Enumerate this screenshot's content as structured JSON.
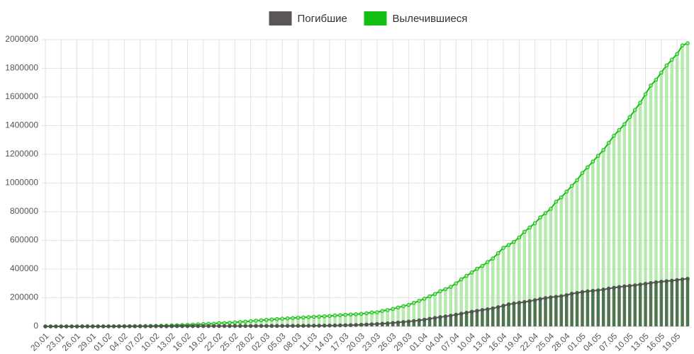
{
  "chart_data": {
    "type": "bar-line",
    "categories": [
      "20.01",
      null,
      null,
      "23.01",
      null,
      null,
      "26.01",
      null,
      null,
      "29.01",
      null,
      null,
      "01.02",
      null,
      null,
      "04.02",
      null,
      null,
      "07.02",
      null,
      null,
      "10.02",
      null,
      null,
      "13.02",
      null,
      null,
      "16.02",
      null,
      null,
      "19.02",
      null,
      null,
      "22.02",
      null,
      null,
      "25.02",
      null,
      null,
      "28.02",
      null,
      null,
      "02.03",
      null,
      null,
      "05.03",
      null,
      null,
      "08.03",
      null,
      null,
      "11.03",
      null,
      null,
      "14.03",
      null,
      null,
      "17.03",
      null,
      null,
      "20.03",
      null,
      null,
      "23.03",
      null,
      null,
      "26.03",
      null,
      null,
      "29.03",
      null,
      null,
      "01.04",
      null,
      null,
      "04.04",
      null,
      null,
      "07.04",
      null,
      null,
      "10.04",
      null,
      null,
      "13.04",
      null,
      null,
      "16.04",
      null,
      null,
      "19.04",
      null,
      null,
      "22.04",
      null,
      null,
      "25.04",
      null,
      null,
      "28.04",
      null,
      null,
      "01.05",
      null,
      null,
      "04.05",
      null,
      null,
      "07.05",
      null,
      null,
      "10.05",
      null,
      null,
      "13.05",
      null,
      null,
      "16.05",
      null,
      null,
      "19.05",
      null,
      null
    ],
    "series": [
      {
        "name": "Погибшие",
        "color": "#5b5557",
        "bar_color": "#3f5f3f",
        "values": [
          0,
          0,
          17,
          18,
          26,
          42,
          56,
          82,
          131,
          133,
          171,
          213,
          259,
          362,
          426,
          492,
          564,
          634,
          719,
          806,
          906,
          1013,
          1113,
          1118,
          1371,
          1523,
          1666,
          1770,
          1868,
          2007,
          2122,
          2247,
          2251,
          2458,
          2469,
          2629,
          2708,
          2770,
          2814,
          2872,
          2941,
          2996,
          3085,
          3160,
          3254,
          3348,
          3460,
          3558,
          3802,
          3988,
          4262,
          4615,
          4720,
          5404,
          5819,
          6440,
          7126,
          7905,
          8733,
          9867,
          11299,
          12973,
          14651,
          16505,
          18625,
          21181,
          23970,
          27198,
          30652,
          33925,
          37582,
          42107,
          46809,
          52983,
          58787,
          64606,
          69374,
          74565,
          81865,
          88338,
          95455,
          102525,
          108503,
          114090,
          119481,
          125983,
          134177,
          143800,
          153822,
          159510,
          165044,
          169985,
          176583,
          183027,
          190858,
          197159,
          202846,
          206567,
          211167,
          217896,
          228194,
          233388,
          239604,
          244664,
          248138,
          251537,
          256880,
          263831,
          269567,
          274898,
          279311,
          282709,
          286355,
          291942,
          297197,
          302418,
          307666,
          311847,
          315185,
          318789,
          323285,
          328115,
          332000
        ]
      },
      {
        "name": "Вылечившиеся",
        "color": "#12bf12",
        "bar_color": "#9fe394",
        "values": [
          0,
          0,
          28,
          30,
          36,
          39,
          52,
          61,
          107,
          126,
          143,
          222,
          284,
          472,
          623,
          852,
          1124,
          1487,
          2011,
          2616,
          3244,
          3946,
          4683,
          5150,
          6295,
          8058,
          9395,
          10865,
          12583,
          14352,
          16121,
          18177,
          18890,
          22886,
          23394,
          25227,
          27905,
          30384,
          33277,
          36711,
          39782,
          42716,
          45602,
          48228,
          51171,
          53797,
          55866,
          58359,
          60694,
          62494,
          64404,
          67003,
          68324,
          70251,
          72624,
          76034,
          78088,
          80840,
          83207,
          84962,
          87403,
          91676,
          97243,
          98334,
          108000,
          114000,
          122000,
          132000,
          141000,
          150000,
          164000,
          178000,
          193000,
          210000,
          226000,
          246000,
          260000,
          276000,
          300000,
          328000,
          353000,
          376000,
          402000,
          422000,
          449000,
          474000,
          510000,
          548000,
          568000,
          590000,
          620000,
          660000,
          690000,
          720000,
          760000,
          790000,
          820000,
          870000,
          900000,
          940000,
          980000,
          1020000,
          1070000,
          1110000,
          1150000,
          1190000,
          1230000,
          1280000,
          1330000,
          1370000,
          1410000,
          1460000,
          1510000,
          1560000,
          1620000,
          1680000,
          1720000,
          1770000,
          1820000,
          1860000,
          1900000,
          1960000,
          1975000
        ]
      }
    ],
    "ylim": [
      0,
      2000000
    ],
    "yticks": [
      0,
      200000,
      400000,
      600000,
      800000,
      1000000,
      1200000,
      1400000,
      1600000,
      1800000,
      2000000
    ],
    "grid": true,
    "legend": "top"
  }
}
